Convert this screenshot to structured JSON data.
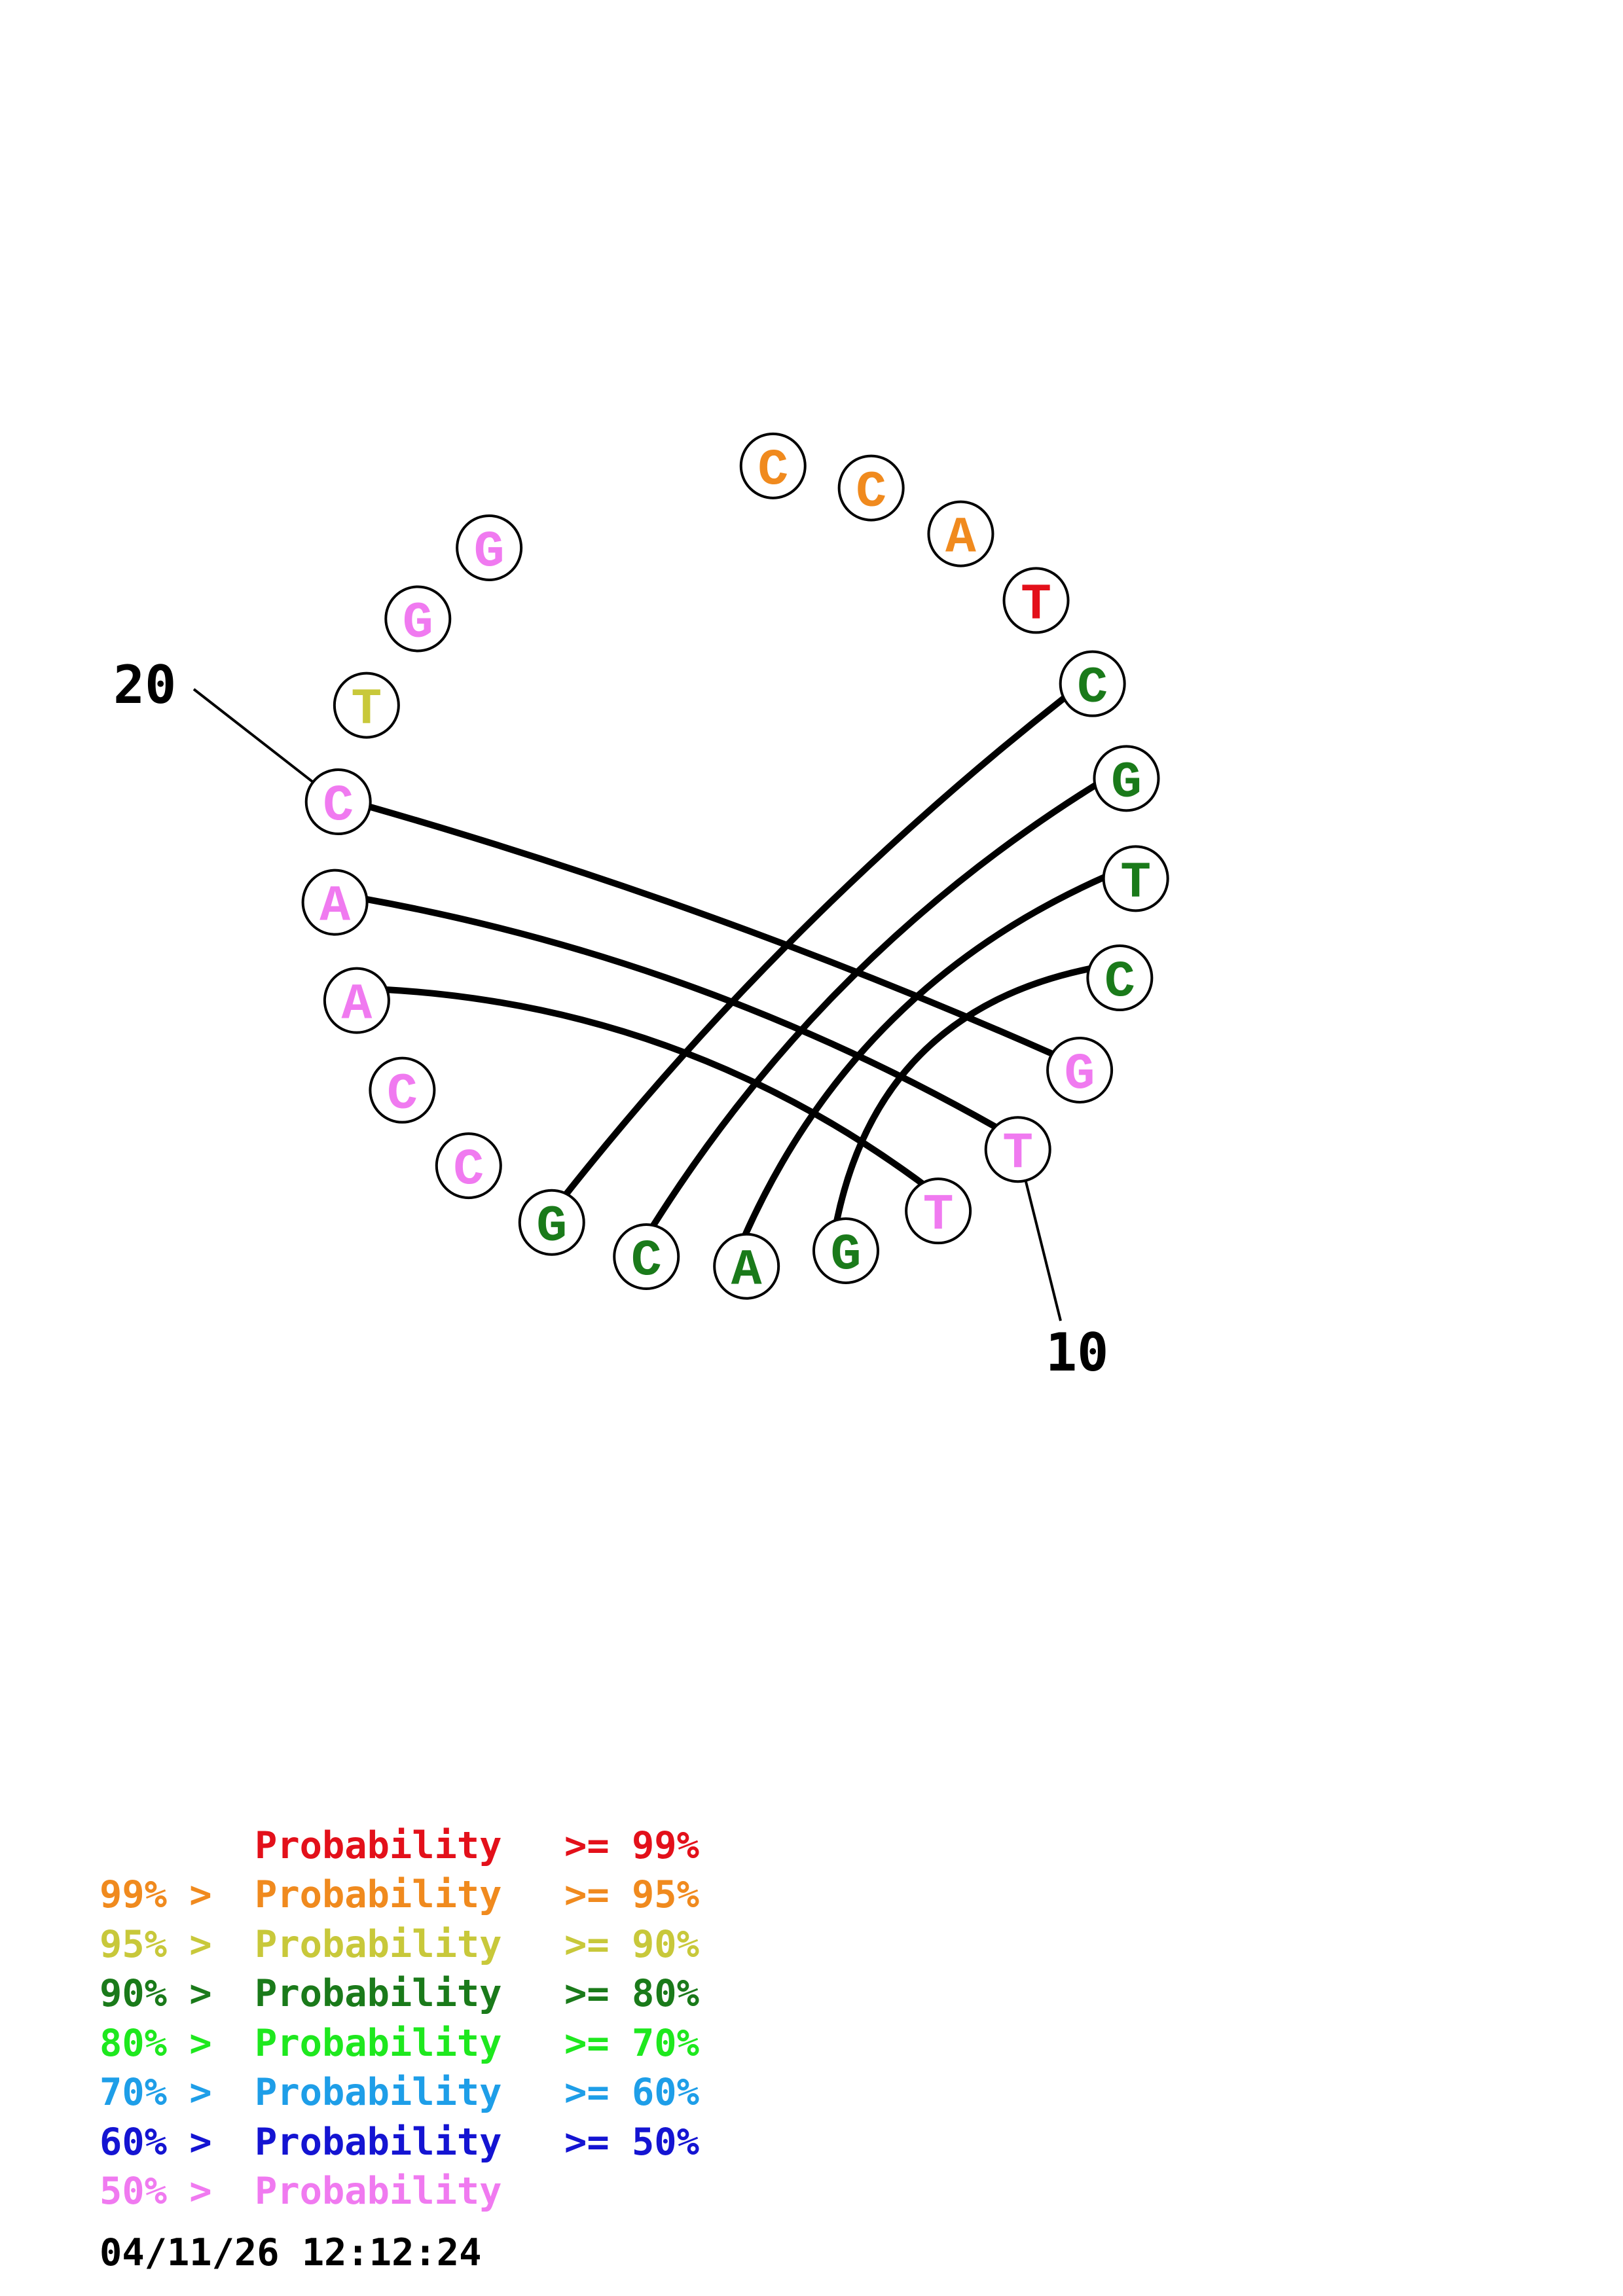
{
  "nucleotides": [
    {
      "pos": 1,
      "base": "C",
      "color": "#f08a1e"
    },
    {
      "pos": 2,
      "base": "C",
      "color": "#f08a1e"
    },
    {
      "pos": 3,
      "base": "A",
      "color": "#f08a1e"
    },
    {
      "pos": 4,
      "base": "T",
      "color": "#e3101a"
    },
    {
      "pos": 5,
      "base": "C",
      "color": "#1a7a1a"
    },
    {
      "pos": 6,
      "base": "G",
      "color": "#1a7a1a"
    },
    {
      "pos": 7,
      "base": "T",
      "color": "#1a7a1a"
    },
    {
      "pos": 8,
      "base": "C",
      "color": "#1a7a1a"
    },
    {
      "pos": 9,
      "base": "G",
      "color": "#f07af0"
    },
    {
      "pos": 10,
      "base": "T",
      "color": "#f07af0"
    },
    {
      "pos": 11,
      "base": "T",
      "color": "#f07af0"
    },
    {
      "pos": 12,
      "base": "G",
      "color": "#1a7a1a"
    },
    {
      "pos": 13,
      "base": "A",
      "color": "#1a7a1a"
    },
    {
      "pos": 14,
      "base": "C",
      "color": "#1a7a1a"
    },
    {
      "pos": 15,
      "base": "G",
      "color": "#1a7a1a"
    },
    {
      "pos": 16,
      "base": "C",
      "color": "#f07af0"
    },
    {
      "pos": 17,
      "base": "C",
      "color": "#f07af0"
    },
    {
      "pos": 18,
      "base": "A",
      "color": "#f07af0"
    },
    {
      "pos": 19,
      "base": "A",
      "color": "#f07af0"
    },
    {
      "pos": 20,
      "base": "C",
      "color": "#f07af0"
    },
    {
      "pos": 21,
      "base": "T",
      "color": "#c8c83a"
    },
    {
      "pos": 22,
      "base": "G",
      "color": "#f07af0"
    },
    {
      "pos": 23,
      "base": "G",
      "color": "#f07af0"
    }
  ],
  "pairs": [
    [
      5,
      15
    ],
    [
      6,
      14
    ],
    [
      7,
      13
    ],
    [
      8,
      12
    ],
    [
      9,
      20
    ],
    [
      10,
      19
    ],
    [
      11,
      18
    ]
  ],
  "index_labels": [
    {
      "pos": 10,
      "text": "10"
    },
    {
      "pos": 20,
      "text": "20"
    }
  ],
  "legend": [
    {
      "prefix": "",
      "middle": "Probability",
      "suffix": ">= 99%",
      "color": "#e3101a"
    },
    {
      "prefix": "99% >",
      "middle": "Probability",
      "suffix": ">= 95%",
      "color": "#f08a1e"
    },
    {
      "prefix": "95% >",
      "middle": "Probability",
      "suffix": ">= 90%",
      "color": "#c8c83a"
    },
    {
      "prefix": "90% >",
      "middle": "Probability",
      "suffix": ">= 80%",
      "color": "#1a7a1a"
    },
    {
      "prefix": "80% >",
      "middle": "Probability",
      "suffix": ">= 70%",
      "color": "#1ee81e"
    },
    {
      "prefix": "70% >",
      "middle": "Probability",
      "suffix": ">= 60%",
      "color": "#1e9ee8"
    },
    {
      "prefix": "60% >",
      "middle": "Probability",
      "suffix": ">= 50%",
      "color": "#1414d2"
    },
    {
      "prefix": "50% >",
      "middle": "Probability",
      "suffix": "",
      "color": "#f07af0"
    }
  ],
  "timestamp": "04/11/26 12:12:24"
}
